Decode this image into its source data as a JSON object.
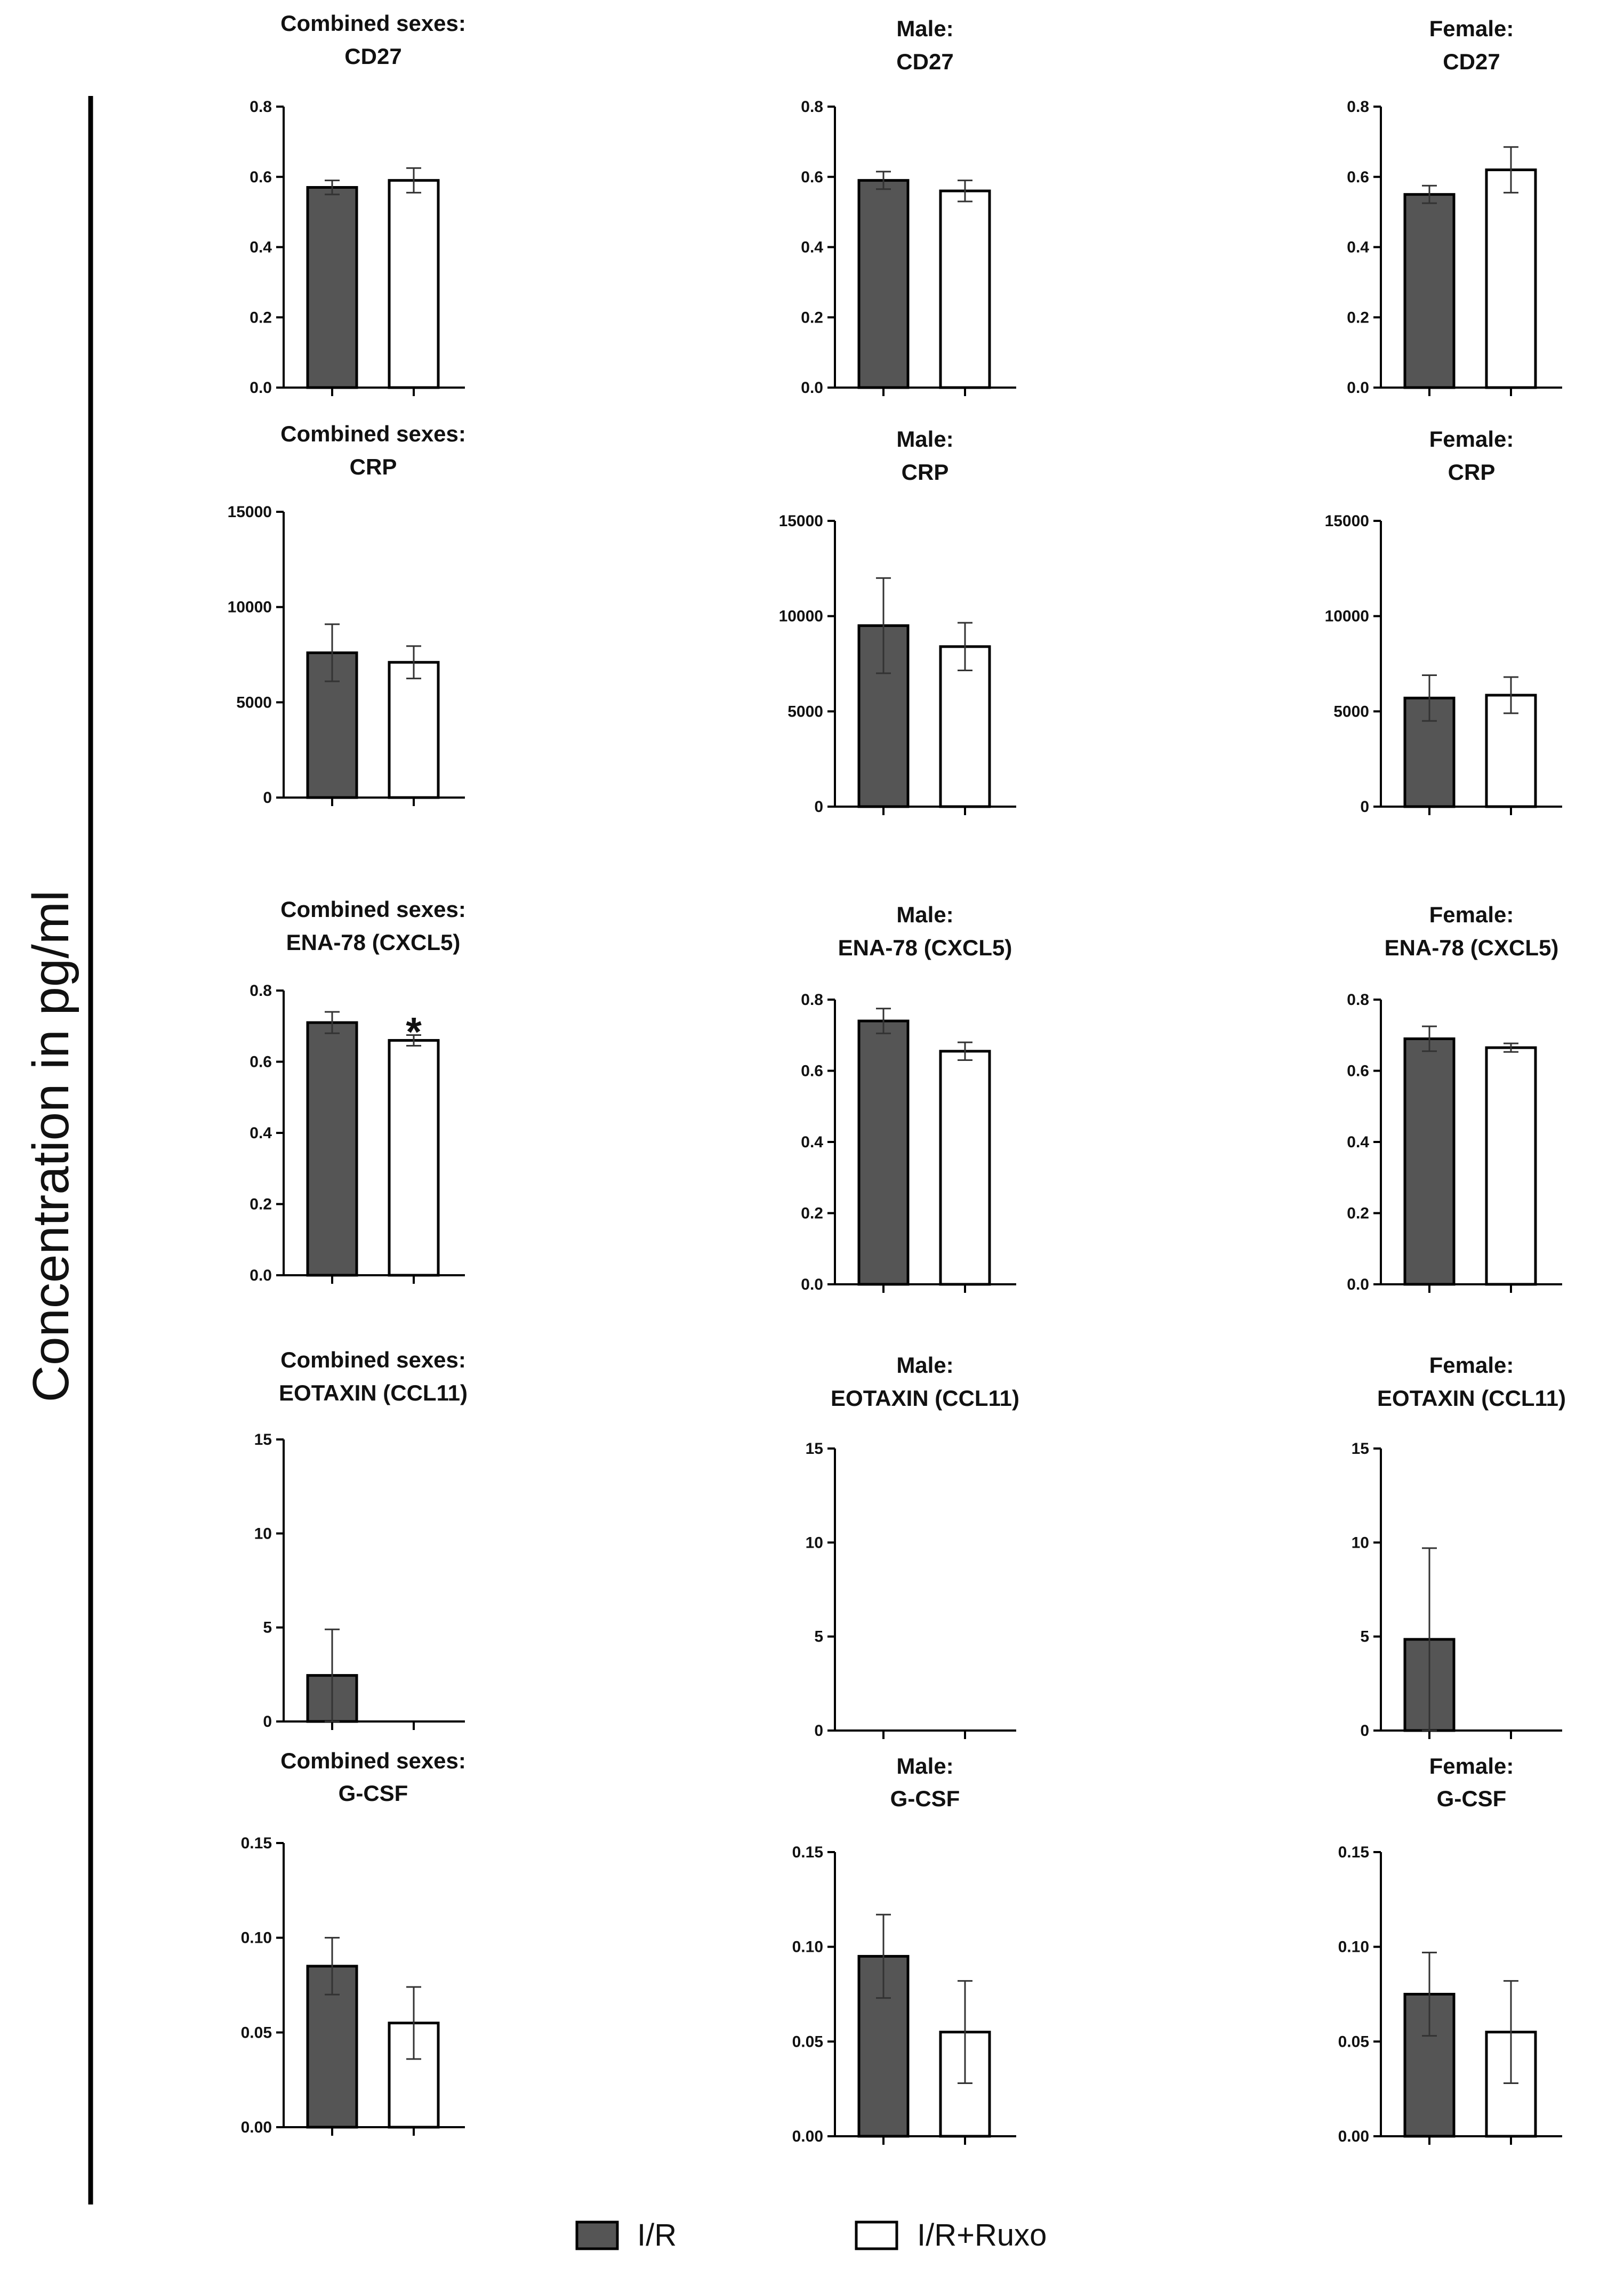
{
  "figure": {
    "ylabel": "Concentration in pg/ml",
    "legend": [
      {
        "label": "I/R",
        "color": "#555555"
      },
      {
        "label": "I/R+Ruxo",
        "color": "#ffffff"
      }
    ]
  },
  "chart_data": [
    {
      "type": "bar",
      "title_line1": "Combined sexes:",
      "title_line2": "CD27",
      "categories": [
        "I/R",
        "I/R+Ruxo"
      ],
      "values": [
        0.57,
        0.59
      ],
      "errors": [
        0.02,
        0.035
      ],
      "ylim": [
        0,
        0.8
      ],
      "yticks": [
        "0.0",
        "0.2",
        "0.4",
        "0.6",
        "0.8"
      ],
      "significance": [
        "",
        ""
      ]
    },
    {
      "type": "bar",
      "title_line1": "Male:",
      "title_line2": "CD27",
      "categories": [
        "I/R",
        "I/R+Ruxo"
      ],
      "values": [
        0.59,
        0.56
      ],
      "errors": [
        0.025,
        0.03
      ],
      "ylim": [
        0,
        0.8
      ],
      "yticks": [
        "0.0",
        "0.2",
        "0.4",
        "0.6",
        "0.8"
      ],
      "significance": [
        "",
        ""
      ]
    },
    {
      "type": "bar",
      "title_line1": "Female:",
      "title_line2": "CD27",
      "categories": [
        "I/R",
        "I/R+Ruxo"
      ],
      "values": [
        0.55,
        0.62
      ],
      "errors": [
        0.025,
        0.065
      ],
      "ylim": [
        0,
        0.8
      ],
      "yticks": [
        "0.0",
        "0.2",
        "0.4",
        "0.6",
        "0.8"
      ],
      "significance": [
        "",
        ""
      ]
    },
    {
      "type": "bar",
      "title_line1": "Combined sexes:",
      "title_line2": "CRP",
      "categories": [
        "I/R",
        "I/R+Ruxo"
      ],
      "values": [
        7600,
        7100
      ],
      "errors": [
        1500,
        850
      ],
      "ylim": [
        0,
        15000
      ],
      "yticks": [
        "0",
        "5000",
        "10000",
        "15000"
      ],
      "significance": [
        "",
        ""
      ]
    },
    {
      "type": "bar",
      "title_line1": "Male:",
      "title_line2": "CRP",
      "categories": [
        "I/R",
        "I/R+Ruxo"
      ],
      "values": [
        9500,
        8400
      ],
      "errors": [
        2500,
        1250
      ],
      "ylim": [
        0,
        15000
      ],
      "yticks": [
        "0",
        "5000",
        "10000",
        "15000"
      ],
      "significance": [
        "",
        ""
      ]
    },
    {
      "type": "bar",
      "title_line1": "Female:",
      "title_line2": "CRP",
      "categories": [
        "I/R",
        "I/R+Ruxo"
      ],
      "values": [
        5700,
        5850
      ],
      "errors": [
        1200,
        950
      ],
      "ylim": [
        0,
        15000
      ],
      "yticks": [
        "0",
        "5000",
        "10000",
        "15000"
      ],
      "significance": [
        "",
        ""
      ]
    },
    {
      "type": "bar",
      "title_line1": "Combined sexes:",
      "title_line2": "ENA-78 (CXCL5)",
      "categories": [
        "I/R",
        "I/R+Ruxo"
      ],
      "values": [
        0.71,
        0.66
      ],
      "errors": [
        0.03,
        0.015
      ],
      "ylim": [
        0,
        0.8
      ],
      "yticks": [
        "0.0",
        "0.2",
        "0.4",
        "0.6",
        "0.8"
      ],
      "significance": [
        "",
        "*"
      ]
    },
    {
      "type": "bar",
      "title_line1": "Male:",
      "title_line2": "ENA-78 (CXCL5)",
      "categories": [
        "I/R",
        "I/R+Ruxo"
      ],
      "values": [
        0.74,
        0.655
      ],
      "errors": [
        0.035,
        0.025
      ],
      "ylim": [
        0,
        0.8
      ],
      "yticks": [
        "0.0",
        "0.2",
        "0.4",
        "0.6",
        "0.8"
      ],
      "significance": [
        "",
        ""
      ]
    },
    {
      "type": "bar",
      "title_line1": "Female:",
      "title_line2": "ENA-78 (CXCL5)",
      "categories": [
        "I/R",
        "I/R+Ruxo"
      ],
      "values": [
        0.69,
        0.665
      ],
      "errors": [
        0.035,
        0.012
      ],
      "ylim": [
        0,
        0.8
      ],
      "yticks": [
        "0.0",
        "0.2",
        "0.4",
        "0.6",
        "0.8"
      ],
      "significance": [
        "",
        ""
      ]
    },
    {
      "type": "bar",
      "title_line1": "Combined sexes:",
      "title_line2": "EOTAXIN (CCL11)",
      "categories": [
        "I/R",
        "I/R+Ruxo"
      ],
      "values": [
        2.45,
        0
      ],
      "errors": [
        2.45,
        0
      ],
      "ylim": [
        0,
        15
      ],
      "yticks": [
        "0",
        "5",
        "10",
        "15"
      ],
      "significance": [
        "",
        ""
      ]
    },
    {
      "type": "bar",
      "title_line1": "Male:",
      "title_line2": "EOTAXIN (CCL11)",
      "categories": [
        "I/R",
        "I/R+Ruxo"
      ],
      "values": [
        0,
        0
      ],
      "errors": [
        0,
        0
      ],
      "ylim": [
        0,
        15
      ],
      "yticks": [
        "0",
        "5",
        "10",
        "15"
      ],
      "significance": [
        "",
        ""
      ]
    },
    {
      "type": "bar",
      "title_line1": "Female:",
      "title_line2": "EOTAXIN (CCL11)",
      "categories": [
        "I/R",
        "I/R+Ruxo"
      ],
      "values": [
        4.85,
        0
      ],
      "errors": [
        4.85,
        0
      ],
      "ylim": [
        0,
        15
      ],
      "yticks": [
        "0",
        "5",
        "10",
        "15"
      ],
      "significance": [
        "",
        ""
      ]
    },
    {
      "type": "bar",
      "title_line1": "Combined sexes:",
      "title_line2": "G-CSF",
      "categories": [
        "I/R",
        "I/R+Ruxo"
      ],
      "values": [
        0.085,
        0.055
      ],
      "errors": [
        0.015,
        0.019
      ],
      "ylim": [
        0,
        0.15
      ],
      "yticks": [
        "0.00",
        "0.05",
        "0.10",
        "0.15"
      ],
      "significance": [
        "",
        ""
      ]
    },
    {
      "type": "bar",
      "title_line1": "Male:",
      "title_line2": "G-CSF",
      "categories": [
        "I/R",
        "I/R+Ruxo"
      ],
      "values": [
        0.095,
        0.055
      ],
      "errors": [
        0.022,
        0.027
      ],
      "ylim": [
        0,
        0.15
      ],
      "yticks": [
        "0.00",
        "0.05",
        "0.10",
        "0.15"
      ],
      "significance": [
        "",
        ""
      ]
    },
    {
      "type": "bar",
      "title_line1": "Female:",
      "title_line2": "G-CSF",
      "categories": [
        "I/R",
        "I/R+Ruxo"
      ],
      "values": [
        0.075,
        0.055
      ],
      "errors": [
        0.022,
        0.027
      ],
      "ylim": [
        0,
        0.15
      ],
      "yticks": [
        "0.00",
        "0.05",
        "0.10",
        "0.15"
      ],
      "significance": [
        "",
        ""
      ]
    }
  ]
}
